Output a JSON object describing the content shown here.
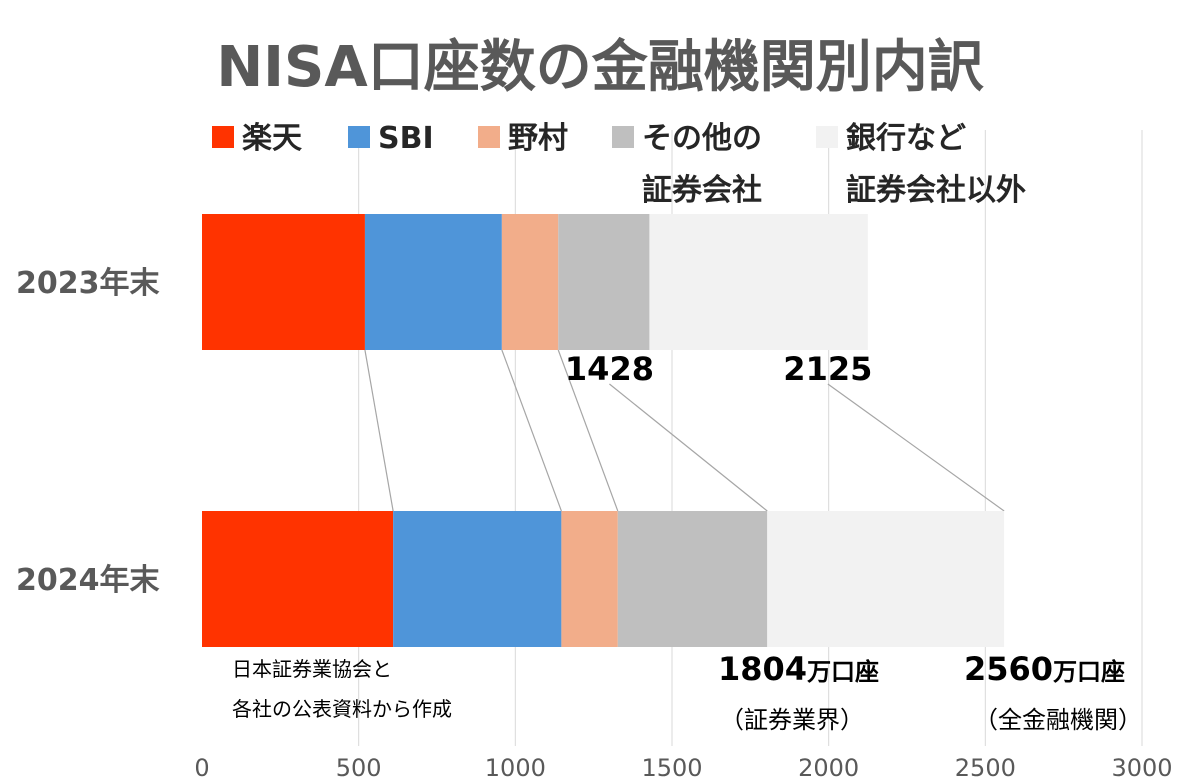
{
  "chart_data": {
    "type": "bar",
    "orientation": "horizontal",
    "stacked": true,
    "title": "NISA口座数の金融機関別内訳",
    "categories": [
      "2023年末",
      "2024年末"
    ],
    "series": [
      {
        "name": "楽天",
        "values": [
          520,
          610
        ],
        "color": "#ff3300"
      },
      {
        "name": "SBI",
        "values": [
          437,
          537
        ],
        "color": "#4f95d9"
      },
      {
        "name": "野村",
        "values": [
          180,
          180
        ],
        "color": "#f2ad8a"
      },
      {
        "name": "その他の証券会社",
        "values": [
          291,
          477
        ],
        "color": "#bfbfbf"
      },
      {
        "name": "銀行など証券会社以外",
        "values": [
          697,
          756
        ],
        "color": "#f2f2f2"
      }
    ],
    "legend": [
      {
        "line1": "楽天",
        "line2": ""
      },
      {
        "line1": "SBI",
        "line2": ""
      },
      {
        "line1": "野村",
        "line2": ""
      },
      {
        "line1": "その他の",
        "line2": "証券会社"
      },
      {
        "line1": "銀行など",
        "line2": "証券会社以外"
      }
    ],
    "legend_position": "top",
    "xlim": [
      0,
      3000
    ],
    "xticks": [
      0,
      500,
      1000,
      1500,
      2000,
      2500,
      3000
    ],
    "grid": "vertical",
    "annotations_2023": [
      {
        "label": "1428",
        "value": 1428
      },
      {
        "label": "2125",
        "value": 2125
      }
    ],
    "annotations_2024": [
      {
        "number": "1804",
        "unit": "万口座",
        "note": "（証券業界）",
        "value": 1804
      },
      {
        "number": "2560",
        "unit": "万口座",
        "note": "（全金融機関）",
        "value": 2560
      }
    ],
    "source_lines": [
      "日本証券業協会と",
      "各社の公表資料から作成"
    ]
  }
}
